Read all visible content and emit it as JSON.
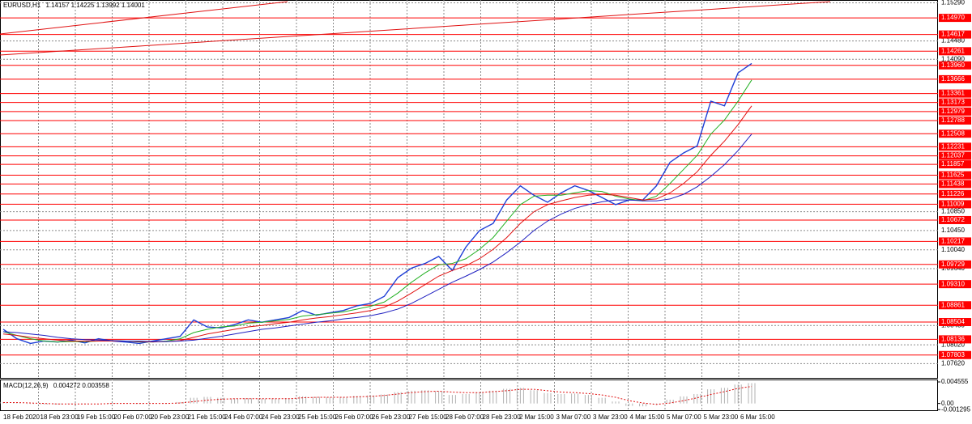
{
  "chart_data": [
    {
      "type": "line",
      "title": "EURUSD,H1",
      "quote": "1.14157 1.14225 1.13992 1.14001",
      "ylim": [
        1.073,
        1.1535
      ],
      "yticks": [
        {
          "value": 1.1529,
          "label": "1.15290"
        },
        {
          "value": 1.1448,
          "label": "1.14480"
        },
        {
          "value": 1.1409,
          "label": "1.14090"
        },
        {
          "value": 1.1085,
          "label": "1.10850"
        },
        {
          "value": 1.1045,
          "label": "1.10450"
        },
        {
          "value": 1.1004,
          "label": "1.10040"
        },
        {
          "value": 1.0964,
          "label": "1.09640"
        },
        {
          "value": 1.0843,
          "label": "1.08430"
        },
        {
          "value": 1.0802,
          "label": "1.08020"
        },
        {
          "value": 1.0762,
          "label": "1.07620"
        }
      ],
      "levels": [
        {
          "value": 1.1497,
          "label": "1.14970"
        },
        1.14617,
        1.14261,
        {
          "value": 1.1396,
          "label": "1.13960"
        },
        1.13666,
        1.13361,
        1.13173,
        1.12979,
        1.12788,
        1.12508,
        1.12231,
        1.12037,
        1.11857,
        1.11625,
        1.11438,
        1.11226,
        1.11009,
        1.10672,
        1.10217,
        1.09729,
        {
          "value": 1.0931,
          "label": "1.09310"
        },
        1.08861,
        1.08504,
        1.08136,
        1.07803
      ],
      "level_color": "#ff0000",
      "grid": true,
      "x_labels": [
        "18 Feb 2020",
        "18 Feb 23:00",
        "19 Feb 15:00",
        "20 Feb 07:00",
        "20 Feb 23:00",
        "21 Feb 15:00",
        "24 Feb 07:00",
        "24 Feb 23:00",
        "25 Feb 15:00",
        "26 Feb 07:00",
        "26 Feb 23:00",
        "27 Feb 15:00",
        "28 Feb 07:00",
        "28 Feb 23:00",
        "2 Mar 15:00",
        "3 Mar 07:00",
        "3 Mar 23:00",
        "4 Mar 15:00",
        "5 Mar 07:00",
        "5 Mar 23:00",
        "6 Mar 15:00"
      ],
      "series": [
        {
          "color": "#1f3fd6",
          "values": [
            1.0835,
            1.0815,
            1.0805,
            1.081,
            1.0808,
            1.0812,
            1.0806,
            1.0815,
            1.081,
            1.0808,
            1.0805,
            1.081,
            1.0815,
            1.082,
            1.0855,
            1.084,
            1.0838,
            1.0845,
            1.0855,
            1.085,
            1.0855,
            1.086,
            1.0875,
            1.0865,
            1.087,
            1.0875,
            1.0885,
            1.089,
            1.0905,
            1.0945,
            1.0965,
            1.0975,
            1.099,
            1.096,
            1.101,
            1.1045,
            1.106,
            1.111,
            1.114,
            1.112,
            1.1105,
            1.1125,
            1.114,
            1.113,
            1.1115,
            1.11,
            1.111,
            1.111,
            1.114,
            1.119,
            1.121,
            1.1225,
            1.132,
            1.131,
            1.138,
            1.14
          ]
        },
        {
          "color": "#22b022",
          "values": [
            1.083,
            1.0822,
            1.0815,
            1.081,
            1.0808,
            1.0809,
            1.0809,
            1.081,
            1.0811,
            1.081,
            1.0808,
            1.0808,
            1.081,
            1.0815,
            1.0828,
            1.0835,
            1.084,
            1.0842,
            1.0848,
            1.085,
            1.0853,
            1.0856,
            1.0863,
            1.0866,
            1.0869,
            1.0872,
            1.0878,
            1.0884,
            1.0893,
            1.0912,
            1.0935,
            1.0955,
            1.0972,
            1.0975,
            1.0985,
            1.1005,
            1.103,
            1.1065,
            1.11,
            1.1118,
            1.112,
            1.112,
            1.1125,
            1.113,
            1.1128,
            1.1118,
            1.1112,
            1.1108,
            1.1118,
            1.1145,
            1.1175,
            1.1205,
            1.125,
            1.128,
            1.132,
            1.1365
          ]
        },
        {
          "color": "#e01010",
          "values": [
            1.0825,
            1.0822,
            1.0818,
            1.0815,
            1.0812,
            1.081,
            1.081,
            1.081,
            1.081,
            1.081,
            1.0809,
            1.0808,
            1.0809,
            1.0811,
            1.0818,
            1.0825,
            1.083,
            1.0835,
            1.084,
            1.0843,
            1.0847,
            1.085,
            1.0855,
            1.0859,
            1.0862,
            1.0866,
            1.087,
            1.0875,
            1.0882,
            1.0895,
            1.0912,
            1.093,
            1.0948,
            1.096,
            1.097,
            1.0985,
            1.1005,
            1.103,
            1.106,
            1.1085,
            1.11,
            1.1108,
            1.1115,
            1.112,
            1.1122,
            1.112,
            1.1115,
            1.111,
            1.1112,
            1.1125,
            1.1145,
            1.117,
            1.1205,
            1.1235,
            1.127,
            1.131
          ]
        },
        {
          "color": "#2020c0",
          "values": [
            1.083,
            1.0828,
            1.0825,
            1.0822,
            1.0818,
            1.0815,
            1.0813,
            1.0812,
            1.0811,
            1.081,
            1.081,
            1.0809,
            1.0809,
            1.081,
            1.0812,
            1.0816,
            1.082,
            1.0825,
            1.083,
            1.0835,
            1.0838,
            1.0842,
            1.0846,
            1.085,
            1.0853,
            1.0857,
            1.086,
            1.0864,
            1.087,
            1.0878,
            1.089,
            1.0905,
            1.092,
            1.0935,
            1.0948,
            1.0962,
            1.0978,
            1.0998,
            1.102,
            1.1045,
            1.1065,
            1.108,
            1.1092,
            1.11,
            1.1106,
            1.111,
            1.111,
            1.1108,
            1.1108,
            1.1112,
            1.1122,
            1.1138,
            1.116,
            1.1185,
            1.1215,
            1.125
          ]
        }
      ]
    },
    {
      "type": "macd",
      "title": "MACD(12,26,9)",
      "quote": "0.004272 0.003558",
      "ylim": [
        -0.0016,
        0.0049
      ],
      "yticks": [
        0.004555,
        {
          "value": 0,
          "label": "0.00"
        },
        -0.001295
      ],
      "series": [
        {
          "color": "#b0b0b0",
          "values": [
            0.0003,
            0.0001,
            -0.0001,
            -0.0002,
            -0.0002,
            -0.0001,
            -0.0001,
            0,
            0.0001,
            0,
            -0.0001,
            0,
            0.0001,
            0.0003,
            0.0012,
            0.0014,
            0.0012,
            0.001,
            0.0011,
            0.001,
            0.001,
            0.0011,
            0.0015,
            0.0014,
            0.0013,
            0.0014,
            0.0016,
            0.0017,
            0.0019,
            0.0024,
            0.0027,
            0.0028,
            0.0026,
            0.0018,
            0.002,
            0.0024,
            0.0027,
            0.0031,
            0.0033,
            0.0028,
            0.0022,
            0.002,
            0.0021,
            0.0018,
            0.0012,
            0.0004,
            -0.0005,
            -0.0006,
            -0.0002,
            0.0008,
            0.0015,
            0.002,
            0.003,
            0.0033,
            0.004,
            0.0043
          ]
        },
        {
          "color": "#e01010",
          "values": [
            0.0002,
            0.0002,
            0.0001,
            0,
            -0.0001,
            -0.0001,
            -0.0001,
            -0.0001,
            0,
            0,
            0,
            0,
            0,
            0.0001,
            0.0004,
            0.0007,
            0.0009,
            0.001,
            0.001,
            0.001,
            0.001,
            0.001,
            0.0012,
            0.0013,
            0.0013,
            0.0013,
            0.0014,
            0.0015,
            0.0017,
            0.002,
            0.0023,
            0.0025,
            0.0026,
            0.0024,
            0.0023,
            0.0023,
            0.0025,
            0.0027,
            0.003,
            0.003,
            0.0027,
            0.0024,
            0.0023,
            0.0021,
            0.0018,
            0.0013,
            0.0006,
            0.0001,
            -0.0002,
            0.0001,
            0.0006,
            0.0012,
            0.0019,
            0.0025,
            0.0032,
            0.0036
          ]
        }
      ]
    }
  ]
}
